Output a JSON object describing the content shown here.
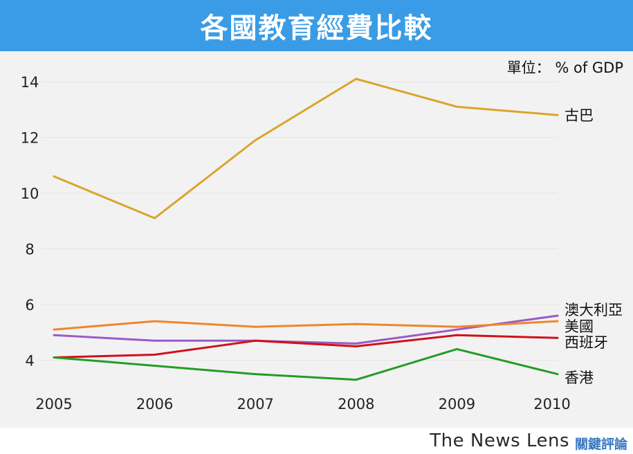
{
  "header": {
    "title": "各國教育經費比較"
  },
  "unit": "單位： % of GDP",
  "footer": {
    "brand": "The News Lens",
    "brand_cn": "關鍵評論"
  },
  "chart_data": {
    "type": "line",
    "title": "各國教育經費比較",
    "xlabel": "",
    "ylabel": "",
    "x": [
      2005,
      2006,
      2007,
      2008,
      2009,
      2010
    ],
    "ylim": [
      3,
      14.5
    ],
    "yticks": [
      4,
      6,
      8,
      10,
      12,
      14
    ],
    "grid": true,
    "legend": "end-of-line labels",
    "series": [
      {
        "name": "古巴",
        "color": "#dba42b",
        "values": [
          10.6,
          9.1,
          11.9,
          14.1,
          13.1,
          12.8
        ]
      },
      {
        "name": "澳大利亞",
        "color": "#9b59c9",
        "values": [
          4.9,
          4.7,
          4.7,
          4.6,
          5.1,
          5.6
        ]
      },
      {
        "name": "美國",
        "color": "#f0852a",
        "values": [
          5.1,
          5.4,
          5.2,
          5.3,
          5.2,
          5.4
        ]
      },
      {
        "name": "西班牙",
        "color": "#d0101a",
        "values": [
          4.1,
          4.2,
          4.7,
          4.5,
          4.9,
          4.8
        ]
      },
      {
        "name": "香港",
        "color": "#239c23",
        "values": [
          4.1,
          3.8,
          3.5,
          3.3,
          4.4,
          3.5
        ]
      }
    ]
  }
}
